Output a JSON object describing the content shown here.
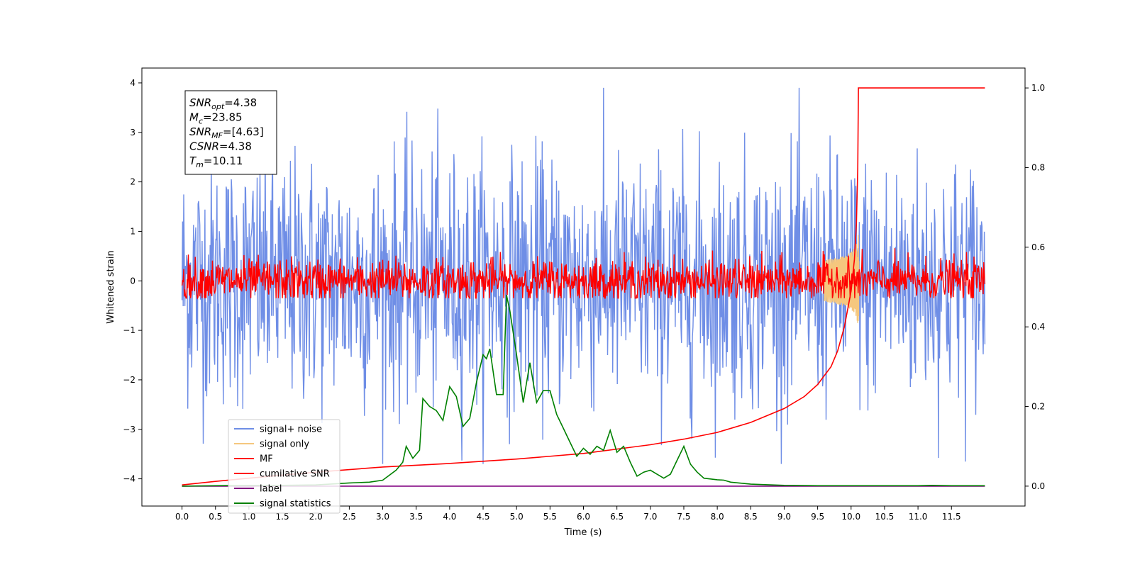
{
  "chart_data": {
    "type": "line",
    "xlabel": "Time (s)",
    "ylabel": "Whitened strain",
    "xlim": [
      -0.6,
      12.6
    ],
    "ylim": [
      -4.55,
      4.3
    ],
    "y2lim": [
      -0.05,
      1.05
    ],
    "x_ticks": [
      "0.0",
      "0.5",
      "1.0",
      "1.5",
      "2.0",
      "2.5",
      "3.0",
      "3.5",
      "4.0",
      "4.5",
      "5.0",
      "5.5",
      "6.0",
      "6.5",
      "7.0",
      "7.5",
      "8.0",
      "8.5",
      "9.0",
      "9.5",
      "10.0",
      "10.5",
      "11.0",
      "11.5"
    ],
    "x_tick_values": [
      0,
      0.5,
      1,
      1.5,
      2,
      2.5,
      3,
      3.5,
      4,
      4.5,
      5,
      5.5,
      6,
      6.5,
      7,
      7.5,
      8,
      8.5,
      9,
      9.5,
      10,
      10.5,
      11,
      11.5
    ],
    "y_ticks": [
      "4",
      "3",
      "2",
      "1",
      "0",
      "−1",
      "−2",
      "−3",
      "−4"
    ],
    "y_tick_values": [
      4,
      3,
      2,
      1,
      0,
      -1,
      -2,
      -3,
      -4
    ],
    "y2_ticks": [
      "1.0",
      "0.8",
      "0.6",
      "0.4",
      "0.2",
      "0.0"
    ],
    "y2_tick_values": [
      1.0,
      0.8,
      0.6,
      0.4,
      0.2,
      0.0
    ],
    "grid": false,
    "legend_position": "lower-left",
    "annotation": {
      "lines": [
        {
          "sym": "SNR",
          "sub": "opt",
          "value": "=4.38"
        },
        {
          "sym": "M",
          "sub": "c",
          "value": "=23.85"
        },
        {
          "sym": "SNR",
          "sub": "MF",
          "value": "=[4.63]"
        },
        {
          "sym": "CSNR",
          "sub": "",
          "value": "=4.38"
        },
        {
          "sym": "T",
          "sub": "m",
          "value": "=10.11"
        }
      ]
    },
    "series": [
      {
        "name": "signal+ noise",
        "axis": "left",
        "color": "#6f8ee6",
        "kind": "noise",
        "x_range": [
          0,
          12
        ],
        "y_mean": 0.0,
        "y_min": -3.7,
        "y_max": 3.9
      },
      {
        "name": "signal only",
        "axis": "left",
        "color": "#f5c77e",
        "kind": "chirp",
        "x_range": [
          9.6,
          10.12
        ],
        "peak_time": 10.11,
        "amplitude": 0.95
      },
      {
        "name": "MF",
        "axis": "left",
        "color": "#ff0000",
        "kind": "noise",
        "x_range": [
          0,
          12
        ],
        "y_mean": 0.0,
        "y_min": -0.35,
        "y_max": 1.0
      },
      {
        "name": "cumilative SNR",
        "axis": "right",
        "color": "#ff0000",
        "kind": "line",
        "x": [
          0.0,
          0.5,
          1.0,
          2.0,
          3.0,
          4.0,
          5.0,
          6.0,
          7.0,
          7.5,
          8.0,
          8.5,
          9.0,
          9.3,
          9.5,
          9.7,
          9.8,
          9.9,
          10.0,
          10.05,
          10.08,
          10.1,
          10.11,
          12.0
        ],
        "y": [
          0.003,
          0.012,
          0.02,
          0.035,
          0.048,
          0.057,
          0.068,
          0.082,
          0.104,
          0.118,
          0.135,
          0.16,
          0.195,
          0.225,
          0.255,
          0.3,
          0.34,
          0.4,
          0.49,
          0.57,
          0.66,
          0.8,
          1.0,
          1.0
        ]
      },
      {
        "name": "label",
        "axis": "right",
        "color": "#800080",
        "kind": "line",
        "x": [
          0.0,
          12.0
        ],
        "y": [
          0.0,
          0.0
        ]
      },
      {
        "name": "signal statistics",
        "axis": "right",
        "color": "#008000",
        "kind": "line",
        "x": [
          0.0,
          0.5,
          1.0,
          1.5,
          2.0,
          2.5,
          2.8,
          3.0,
          3.2,
          3.3,
          3.35,
          3.45,
          3.55,
          3.6,
          3.7,
          3.8,
          3.9,
          4.0,
          4.1,
          4.2,
          4.3,
          4.4,
          4.5,
          4.55,
          4.6,
          4.7,
          4.8,
          4.85,
          4.9,
          5.0,
          5.1,
          5.2,
          5.3,
          5.4,
          5.5,
          5.6,
          5.7,
          5.8,
          5.9,
          6.0,
          6.1,
          6.2,
          6.3,
          6.4,
          6.5,
          6.6,
          6.7,
          6.8,
          6.9,
          7.0,
          7.1,
          7.2,
          7.3,
          7.4,
          7.5,
          7.6,
          7.65,
          7.7,
          7.8,
          7.9,
          8.0,
          8.1,
          8.2,
          8.5,
          9.0,
          9.5,
          10.0,
          11.0,
          11.2,
          11.5,
          12.0
        ],
        "y": [
          0.0,
          0.001,
          0.002,
          0.002,
          0.003,
          0.008,
          0.01,
          0.015,
          0.04,
          0.06,
          0.1,
          0.07,
          0.09,
          0.22,
          0.2,
          0.19,
          0.165,
          0.25,
          0.225,
          0.15,
          0.17,
          0.26,
          0.33,
          0.32,
          0.345,
          0.23,
          0.23,
          0.48,
          0.44,
          0.33,
          0.21,
          0.31,
          0.21,
          0.24,
          0.24,
          0.18,
          0.145,
          0.11,
          0.075,
          0.095,
          0.08,
          0.1,
          0.09,
          0.14,
          0.085,
          0.1,
          0.06,
          0.025,
          0.035,
          0.04,
          0.03,
          0.02,
          0.03,
          0.065,
          0.1,
          0.055,
          0.045,
          0.035,
          0.02,
          0.018,
          0.016,
          0.015,
          0.01,
          0.005,
          0.002,
          0.001,
          0.001,
          0.001,
          0.002,
          0.001,
          0.001
        ]
      }
    ]
  }
}
